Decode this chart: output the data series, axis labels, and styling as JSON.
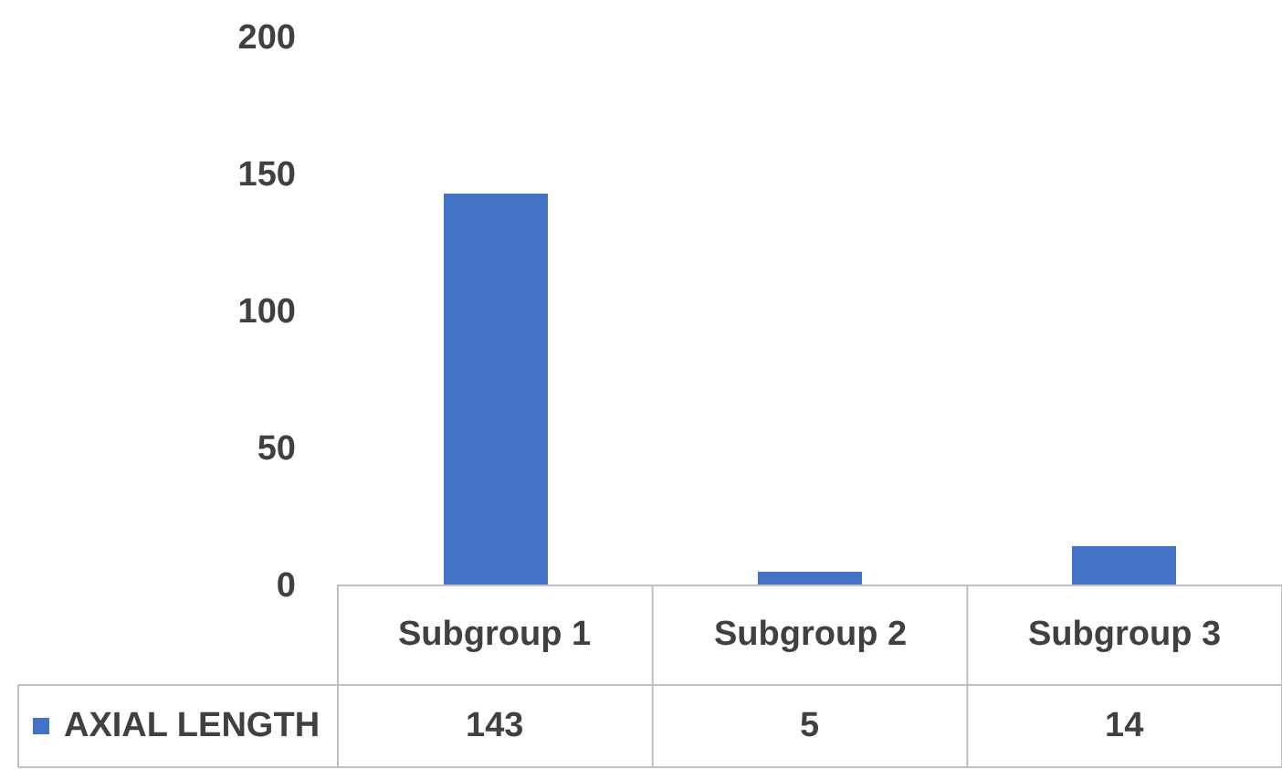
{
  "chart_data": {
    "type": "bar",
    "categories": [
      "Subgroup 1",
      "Subgroup 2",
      "Subgroup 3"
    ],
    "series": [
      {
        "name": "AXIAL LENGTH",
        "color": "#4472c4",
        "values": [
          143,
          5,
          14
        ]
      }
    ],
    "ylim": [
      0,
      200
    ],
    "yticks": [
      0,
      50,
      100,
      150,
      200
    ],
    "data_labels": true,
    "legend": "bottom left"
  }
}
